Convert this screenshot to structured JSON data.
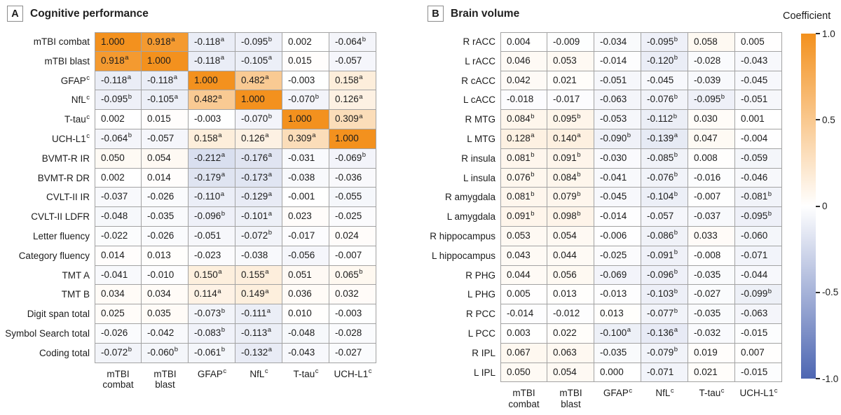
{
  "panels_ui": {
    "a": {
      "letter": "A",
      "title": "Cognitive performance"
    },
    "b": {
      "letter": "B",
      "title": "Brain volume"
    }
  },
  "colorbar": {
    "title": "Coefficient",
    "ticks": [
      "1.0",
      "0.5",
      "0",
      "-0.5",
      "-1.0"
    ],
    "domain": [
      1.0,
      -1.0
    ],
    "gradient_top_to_bottom": [
      "#F3911E",
      "#FFFFFF",
      "#4D66B2"
    ]
  },
  "colors": {
    "positive": "#F3911E",
    "negative": "#4D66B2",
    "neutral": "#FFFFFF",
    "border": "#A3A3A3",
    "text": "#1C1C1C"
  },
  "chart_data": [
    {
      "type": "heatmap",
      "panel_letter": "A",
      "title": "Cognitive performance",
      "colormap": "diverging orange (+1) to white (0) to blue (-1)",
      "columns": [
        "mTBI\ncombat",
        "mTBI\nblast",
        "GFAP^c",
        "NfL^c",
        "T-tau^c",
        "UCH-L1^c"
      ],
      "rows": [
        "mTBI combat",
        "mTBI blast",
        "GFAP^c",
        "NfL^c",
        "T-tau^c",
        "UCH-L1^c",
        "BVMT-R IR",
        "BVMT-R DR",
        "CVLT-II IR",
        "CVLT-II LDFR",
        "Letter fluency",
        "Category fluency",
        "TMT A",
        "TMT B",
        "Digit span total",
        "Symbol Search total",
        "Coding total"
      ],
      "values": [
        [
          "1.000",
          "0.918^a",
          "-0.118^a",
          "-0.095^b",
          "0.002",
          "-0.064^b"
        ],
        [
          "0.918^a",
          "1.000",
          "-0.118^a",
          "-0.105^a",
          "0.015",
          "-0.057"
        ],
        [
          "-0.118^a",
          "-0.118^a",
          "1.000",
          "0.482^a",
          "-0.003",
          "0.158^a"
        ],
        [
          "-0.095^b",
          "-0.105^a",
          "0.482^a",
          "1.000",
          "-0.070^b",
          "0.126^a"
        ],
        [
          "0.002",
          "0.015",
          "-0.003",
          "-0.070^b",
          "1.000",
          "0.309^a"
        ],
        [
          "-0.064^b",
          "-0.057",
          "0.158^a",
          "0.126^a",
          "0.309^a",
          "1.000"
        ],
        [
          "0.050",
          "0.054",
          "-0.212^a",
          "-0.176^a",
          "-0.031",
          "-0.069^b"
        ],
        [
          "0.002",
          "0.014",
          "-0.179^a",
          "-0.173^a",
          "-0.038",
          "-0.036"
        ],
        [
          "-0.037",
          "-0.026",
          "-0.110^a",
          "-0.129^a",
          "-0.001",
          "-0.055"
        ],
        [
          "-0.048",
          "-0.035",
          "-0.096^b",
          "-0.101^a",
          "0.023",
          "-0.025"
        ],
        [
          "-0.022",
          "-0.026",
          "-0.051",
          "-0.072^b",
          "-0.017",
          "0.024"
        ],
        [
          "0.014",
          "0.013",
          "-0.023",
          "-0.038",
          "-0.056",
          "-0.007"
        ],
        [
          "-0.041",
          "-0.010",
          "0.150^a",
          "0.155^a",
          "0.051",
          "0.065^b"
        ],
        [
          "0.034",
          "0.034",
          "0.114^a",
          "0.149^a",
          "0.036",
          "0.032"
        ],
        [
          "0.025",
          "0.035",
          "-0.073^b",
          "-0.111^a",
          "0.010",
          "-0.003"
        ],
        [
          "-0.026",
          "-0.042",
          "-0.083^b",
          "-0.113^a",
          "-0.048",
          "-0.028"
        ],
        [
          "-0.072^b",
          "-0.060^b",
          "-0.061^b",
          "-0.132^a",
          "-0.043",
          "-0.027"
        ]
      ]
    },
    {
      "type": "heatmap",
      "panel_letter": "B",
      "title": "Brain volume",
      "colormap": "diverging orange (+1) to white (0) to blue (-1)",
      "columns": [
        "mTBI\ncombat",
        "mTBI\nblast",
        "GFAP^c",
        "NfL^c",
        "T-tau^c",
        "UCH-L1^c"
      ],
      "rows": [
        "R rACC",
        "L rACC",
        "R cACC",
        "L cACC",
        "R MTG",
        "L MTG",
        "R insula",
        "L insula",
        "R amygdala",
        "L amygdala",
        "R hippocampus",
        "L hippocampus",
        "R PHG",
        "L PHG",
        "R PCC",
        "L PCC",
        "R IPL",
        "L IPL"
      ],
      "values": [
        [
          "0.004",
          "-0.009",
          "-0.034",
          "-0.095^b",
          "0.058",
          "0.005"
        ],
        [
          "0.046",
          "0.053",
          "-0.014",
          "-0.120^b",
          "-0.028",
          "-0.043"
        ],
        [
          "0.042",
          "0.021",
          "-0.051",
          "-0.045",
          "-0.039",
          "-0.045"
        ],
        [
          "-0.018",
          "-0.017",
          "-0.063",
          "-0.076^b",
          "-0.095^b",
          "-0.051"
        ],
        [
          "0.084^b",
          "0.095^b",
          "-0.053",
          "-0.112^b",
          "0.030",
          "0.001"
        ],
        [
          "0.128^a",
          "0.140^a",
          "-0.090^b",
          "-0.139^a",
          "0.047",
          "-0.004"
        ],
        [
          "0.081^b",
          "0.091^b",
          "-0.030",
          "-0.085^b",
          "0.008",
          "-0.059"
        ],
        [
          "0.076^b",
          "0.084^b",
          "-0.041",
          "-0.076^b",
          "-0.016",
          "-0.046"
        ],
        [
          "0.081^b",
          "0.079^b",
          "-0.045",
          "-0.104^b",
          "-0.007",
          "-0.081^b"
        ],
        [
          "0.091^b",
          "0.098^b",
          "-0.014",
          "-0.057",
          "-0.037",
          "-0.095^b"
        ],
        [
          "0.053",
          "0.054",
          "-0.006",
          "-0.086^b",
          "0.033",
          "-0.060"
        ],
        [
          "0.043",
          "0.044",
          "-0.025",
          "-0.091^b",
          "-0.008",
          "-0.071"
        ],
        [
          "0.044",
          "0.056",
          "-0.069",
          "-0.096^b",
          "-0.035",
          "-0.044"
        ],
        [
          "0.005",
          "0.013",
          "-0.013",
          "-0.103^b",
          "-0.027",
          "-0.099^b"
        ],
        [
          "-0.014",
          "-0.012",
          "0.013",
          "-0.077^b",
          "-0.035",
          "-0.063"
        ],
        [
          "0.003",
          "0.022",
          "-0.100^a",
          "-0.136^a",
          "-0.032",
          "-0.015"
        ],
        [
          "0.067",
          "0.063",
          "-0.035",
          "-0.079^b",
          "0.019",
          "0.007"
        ],
        [
          "0.050",
          "0.054",
          "0.000",
          "-0.071",
          "0.021",
          "-0.015"
        ]
      ]
    }
  ]
}
